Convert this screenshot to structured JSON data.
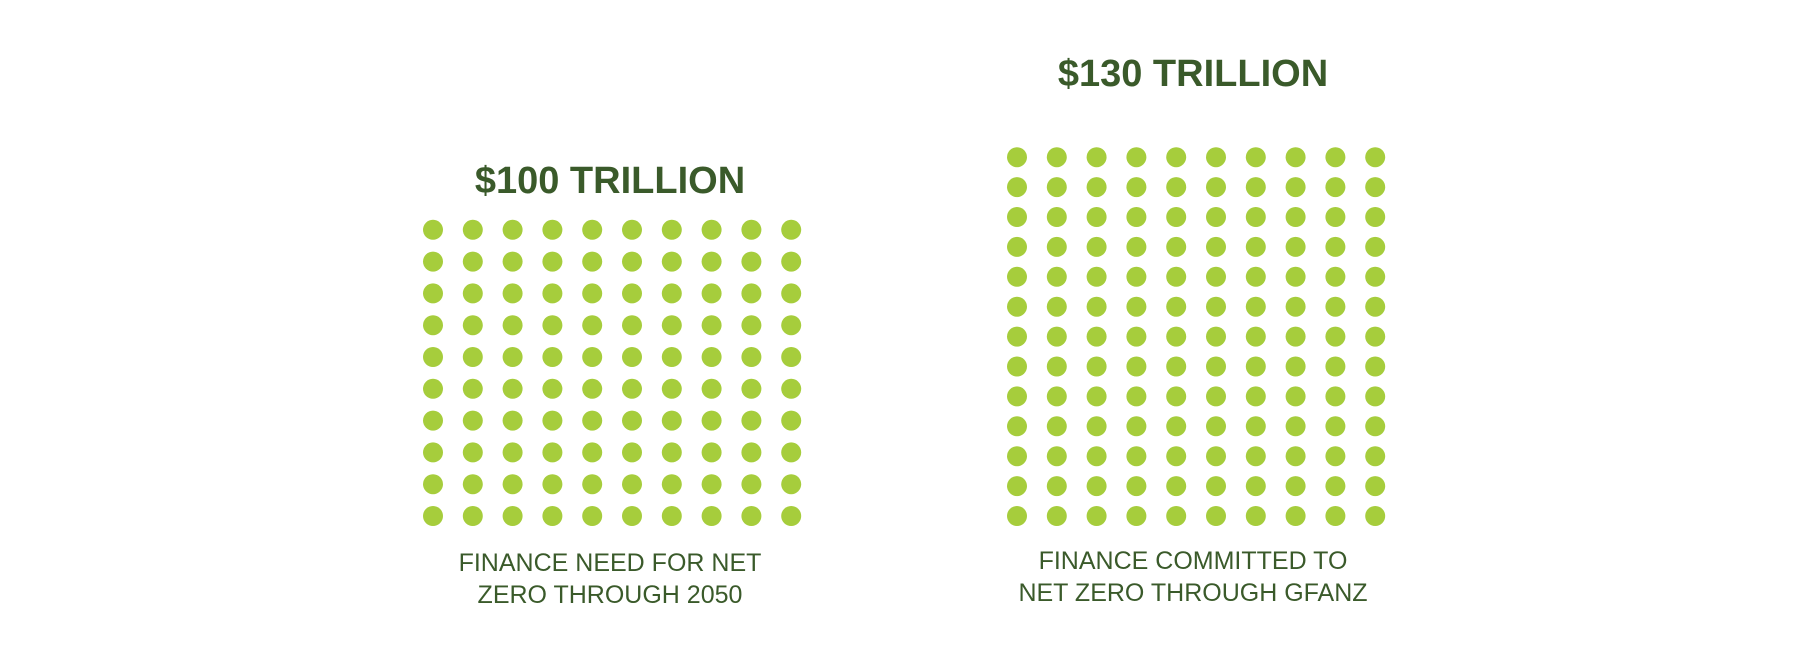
{
  "colors": {
    "text": "#3a5a2a",
    "dot": "#a6cd3c",
    "background": "#ffffff"
  },
  "chart_data": {
    "type": "pictogram",
    "unit": "$1 trillion per dot",
    "columns": 10,
    "panels": [
      {
        "title": "$100 TRILLION",
        "caption_lines": [
          "FINANCE NEED FOR NET",
          "ZERO THROUGH 2050"
        ],
        "value": 100,
        "dots": 100,
        "rows": 10
      },
      {
        "title": "$130 TRILLION",
        "caption_lines": [
          "FINANCE COMMITTED TO",
          "NET ZERO THROUGH GFANZ"
        ],
        "value": 130,
        "dots": 130,
        "rows": 13
      }
    ]
  }
}
